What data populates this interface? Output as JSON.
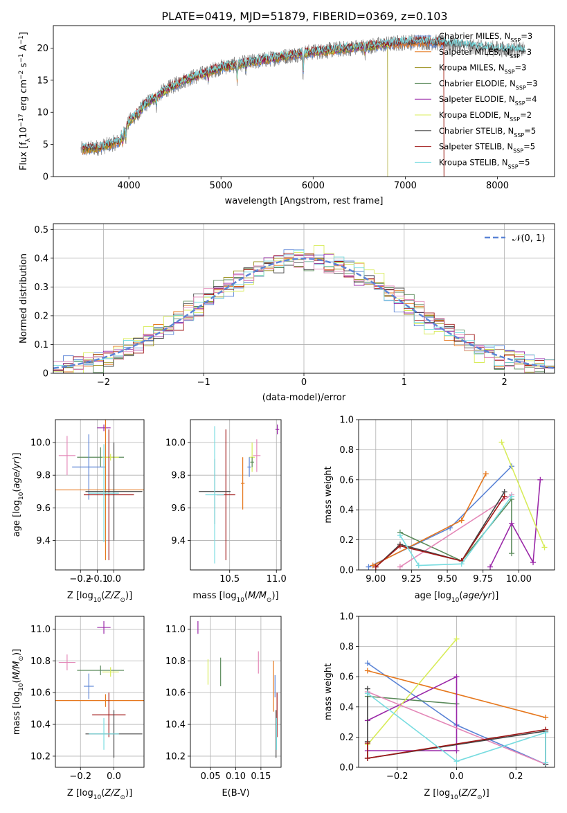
{
  "figure_title": "PLATE=0419, MJD=51879, FIBERID=0369, z=0.103",
  "colors": {
    "Chabrier MILES": "#5b84d6",
    "Salpeter MILES": "#e6781e",
    "Kroupa MILES": "#9a8f1a",
    "Chabrier ELODIE": "#5a8a5a",
    "Salpeter ELODIE": "#9a28a8",
    "Kroupa ELODIE": "#d8ec5a",
    "Chabrier STELIB": "#444444",
    "Salpeter STELIB": "#a01818",
    "Kroupa STELIB": "#78dce0",
    "pink": "#e488b8",
    "data": "#808080"
  },
  "chart_data": [
    {
      "id": "spectrum",
      "type": "line",
      "title": "PLATE=0419, MJD=51879, FIBERID=0369, z=0.103",
      "xlabel": "wavelength [Angstrom, rest frame]",
      "ylabel": "Flux [f_λ 10^-17 erg cm^-2 s^-1 A^-1]",
      "xlim": [
        3180,
        8620
      ],
      "ylim": [
        0,
        23.5
      ],
      "xticks": [
        4000,
        5000,
        6000,
        7000,
        8000
      ],
      "yticks": [
        0,
        5,
        10,
        15,
        20
      ],
      "grid": false,
      "legend_position": "right",
      "legend": [
        {
          "label": "Chabrier MILES, N",
          "sub": "SSP",
          "suffix": "=3",
          "color": "Chabrier MILES"
        },
        {
          "label": "Salpeter MILES, N",
          "sub": "SSP",
          "suffix": "=3",
          "color": "Salpeter MILES"
        },
        {
          "label": "Kroupa MILES, N",
          "sub": "SSP",
          "suffix": "=3",
          "color": "Kroupa MILES"
        },
        {
          "label": "Chabrier ELODIE, N",
          "sub": "SSP",
          "suffix": "=3",
          "color": "Chabrier ELODIE"
        },
        {
          "label": "Salpeter ELODIE, N",
          "sub": "SSP",
          "suffix": "=4",
          "color": "Salpeter ELODIE"
        },
        {
          "label": "Kroupa ELODIE, N",
          "sub": "SSP",
          "suffix": "=2",
          "color": "Kroupa ELODIE"
        },
        {
          "label": "Chabrier STELIB, N",
          "sub": "SSP",
          "suffix": "=5",
          "color": "Chabrier STELIB"
        },
        {
          "label": "Salpeter STELIB, N",
          "sub": "SSP",
          "suffix": "=5",
          "color": "Salpeter STELIB"
        },
        {
          "label": "Kroupa STELIB, N",
          "sub": "SSP",
          "suffix": "=5",
          "color": "Kroupa STELIB"
        }
      ],
      "continuum_x": [
        3480,
        3700,
        3900,
        4000,
        4200,
        4400,
        4600,
        4800,
        5000,
        5200,
        5400,
        5600,
        5800,
        6000,
        6200,
        6400,
        6600,
        6800,
        7000,
        7200,
        7400,
        7600,
        7800,
        8000,
        8200
      ],
      "continuum_y": [
        4.2,
        4.6,
        5.5,
        8.5,
        11.5,
        13.5,
        15.0,
        16.0,
        17.0,
        17.5,
        18.0,
        18.5,
        19.0,
        19.4,
        19.7,
        20.0,
        20.3,
        20.6,
        20.9,
        21.0,
        20.8,
        20.4,
        20.1,
        19.9,
        19.7
      ],
      "model_ranges": [
        {
          "color": "Chabrier MILES",
          "start": 3500,
          "end": 7420
        },
        {
          "color": "Salpeter MILES",
          "start": 3500,
          "end": 7420
        },
        {
          "color": "Kroupa MILES",
          "start": 3500,
          "end": 6810
        },
        {
          "color": "Chabrier ELODIE",
          "start": 3900,
          "end": 6810
        },
        {
          "color": "Salpeter ELODIE",
          "start": 3900,
          "end": 6810
        },
        {
          "color": "Kroupa ELODIE",
          "start": 3900,
          "end": 6810
        },
        {
          "color": "Chabrier STELIB",
          "start": 3500,
          "end": 8300
        },
        {
          "color": "Salpeter STELIB",
          "start": 3500,
          "end": 7420
        },
        {
          "color": "Kroupa STELIB",
          "start": 3500,
          "end": 8300
        }
      ],
      "dips": [
        {
          "x": 3934,
          "depth": 1.5
        },
        {
          "x": 3968,
          "depth": 1.5
        },
        {
          "x": 4102,
          "depth": 1.2
        },
        {
          "x": 4300,
          "depth": 1.4
        },
        {
          "x": 4861,
          "depth": 1.3
        },
        {
          "x": 5175,
          "depth": 2.6
        },
        {
          "x": 5270,
          "depth": 1.0
        },
        {
          "x": 5892,
          "depth": 3.5
        },
        {
          "x": 6563,
          "depth": 1.2
        }
      ]
    },
    {
      "id": "residuals",
      "type": "histogram",
      "xlabel": "(data-model)/error",
      "ylabel": "Normed distribution",
      "xlim": [
        -2.5,
        2.5
      ],
      "ylim": [
        0,
        0.52
      ],
      "xticks": [
        -2,
        -1,
        0,
        1,
        2
      ],
      "yticks": [
        0.0,
        0.1,
        0.2,
        0.3,
        0.4,
        0.5
      ],
      "grid": true,
      "legend_position": "upper right",
      "legend_label": "𝒩(0, 1)",
      "bin_width": 0.1,
      "gaussian": {
        "mean": 0,
        "sigma": 1,
        "color": "#5b84d6"
      },
      "series_colors": [
        "Chabrier MILES",
        "Salpeter MILES",
        "Kroupa MILES",
        "Chabrier ELODIE",
        "Salpeter ELODIE",
        "Kroupa ELODIE",
        "Chabrier STELIB",
        "Salpeter STELIB",
        "Kroupa STELIB",
        "pink"
      ],
      "series_offsets": [
        0.012,
        -0.015,
        0.008,
        0.02,
        -0.01,
        0.03,
        -0.02,
        0.005,
        -0.006,
        0.015
      ]
    },
    {
      "id": "age_vs_Z",
      "type": "errorbar",
      "xlabel": "Z [log10(Z/Z⊙)]",
      "ylabel": "age [log10(age/yr)]",
      "xlim": [
        -0.35,
        0.18
      ],
      "ylim": [
        9.22,
        10.14
      ],
      "xticks": [
        -0.2,
        -0.1,
        0.0
      ],
      "xticklabels": [
        "−0.2",
        "−0.1",
        "0.0"
      ],
      "yticks": [
        9.4,
        9.6,
        9.8,
        10.0
      ],
      "yticklabels": [
        "9.4",
        "9.6",
        "9.8",
        "10.0"
      ],
      "grid": true,
      "points": [
        {
          "x": -0.06,
          "y": 10.09,
          "xerr": 0.04,
          "yerr": 0.02,
          "color": "Salpeter ELODIE"
        },
        {
          "x": -0.28,
          "y": 9.92,
          "xerr": 0.05,
          "yerr": 0.12,
          "color": "pink"
        },
        {
          "x": -0.08,
          "y": 9.91,
          "xerr": 0.14,
          "yerr": 0.06,
          "color": "Chabrier ELODIE"
        },
        {
          "x": -0.02,
          "y": 9.91,
          "xerr": 0.05,
          "yerr": 0.02,
          "color": "Kroupa ELODIE"
        },
        {
          "x": -0.15,
          "y": 9.85,
          "xerr": 0.1,
          "yerr": 0.2,
          "color": "Chabrier MILES"
        },
        {
          "x": -0.05,
          "y": 9.71,
          "xerr": 0.3,
          "yerr": 0.43,
          "color": "Salpeter MILES"
        },
        {
          "x": 0.0,
          "y": 9.7,
          "xerr": 0.17,
          "yerr": 0.3,
          "color": "Chabrier STELIB"
        },
        {
          "x": -0.03,
          "y": 9.68,
          "xerr": 0.15,
          "yerr": 0.4,
          "color": "Salpeter STELIB"
        },
        {
          "x": -0.06,
          "y": 9.69,
          "xerr": 0.09,
          "yerr": 0.3,
          "color": "Kroupa STELIB"
        }
      ]
    },
    {
      "id": "age_vs_mass",
      "type": "errorbar",
      "xlabel": "mass [log10(M/M⊙)]",
      "ylabel": "",
      "xlim": [
        10.08,
        11.05
      ],
      "ylim": [
        9.22,
        10.14
      ],
      "xticks": [
        10.5,
        11.0
      ],
      "xticklabels": [
        "10.5",
        "11.0"
      ],
      "yticks": [
        9.4,
        9.6,
        9.8,
        10.0
      ],
      "yticklabels": [
        "9.4",
        "9.6",
        "9.8",
        "10.0"
      ],
      "grid": true,
      "points": [
        {
          "x": 11.01,
          "y": 10.08,
          "xerr": 0.02,
          "yerr": 0.03,
          "color": "Salpeter ELODIE"
        },
        {
          "x": 10.79,
          "y": 9.92,
          "xerr": 0.04,
          "yerr": 0.1,
          "color": "pink"
        },
        {
          "x": 10.74,
          "y": 9.91,
          "xerr": 0.03,
          "yerr": 0.09,
          "color": "Kroupa ELODIE"
        },
        {
          "x": 10.74,
          "y": 9.88,
          "xerr": 0.02,
          "yerr": 0.03,
          "color": "Chabrier ELODIE"
        },
        {
          "x": 10.71,
          "y": 9.85,
          "xerr": 0.02,
          "yerr": 0.06,
          "color": "Chabrier MILES"
        },
        {
          "x": 10.64,
          "y": 9.75,
          "xerr": 0.02,
          "yerr": 0.16,
          "color": "Salpeter MILES"
        },
        {
          "x": 10.46,
          "y": 9.68,
          "xerr": 0.1,
          "yerr": 0.4,
          "color": "Salpeter STELIB"
        },
        {
          "x": 10.34,
          "y": 9.7,
          "xerr": 0.17,
          "yerr": 0.2,
          "color": "Chabrier STELIB"
        },
        {
          "x": 10.34,
          "y": 9.68,
          "xerr": 0.1,
          "yerr": 0.42,
          "color": "Kroupa STELIB"
        }
      ]
    },
    {
      "id": "weight_vs_age",
      "type": "line",
      "xlabel": "age [log10(age/yr)]",
      "ylabel": "mass weight",
      "xlim": [
        8.88,
        10.25
      ],
      "ylim": [
        0,
        1
      ],
      "xticks": [
        9.0,
        9.25,
        9.5,
        9.75,
        10.0
      ],
      "xticklabels": [
        "9.00",
        "9.25",
        "9.50",
        "9.75",
        "10.00"
      ],
      "yticks": [
        0,
        0.2,
        0.4,
        0.6,
        0.8,
        1.0
      ],
      "yticklabels": [
        "0.0",
        "0.2",
        "0.4",
        "0.6",
        "0.8",
        "1.0"
      ],
      "grid": true,
      "series": [
        {
          "color": "Chabrier MILES",
          "x": [
            8.95,
            9.52,
            9.95
          ],
          "y": [
            0.02,
            0.28,
            0.69
          ]
        },
        {
          "color": "Salpeter MILES",
          "x": [
            8.98,
            9.6,
            9.77
          ],
          "y": [
            0.03,
            0.33,
            0.64
          ]
        },
        {
          "color": "Chabrier ELODIE",
          "x": [
            9.17,
            9.6,
            9.95,
            9.95
          ],
          "y": [
            0.25,
            0.06,
            0.47,
            0.11
          ]
        },
        {
          "color": "Salpeter ELODIE",
          "x": [
            9.8,
            9.95,
            10.1,
            10.15
          ],
          "y": [
            0.02,
            0.31,
            0.05,
            0.6
          ]
        },
        {
          "color": "Kroupa ELODIE",
          "x": [
            9.88,
            10.18
          ],
          "y": [
            0.85,
            0.15
          ]
        },
        {
          "color": "pink",
          "x": [
            9.17,
            9.95
          ],
          "y": [
            0.02,
            0.5
          ]
        },
        {
          "color": "Chabrier STELIB",
          "x": [
            9.0,
            9.17,
            9.6,
            9.9
          ],
          "y": [
            0.02,
            0.17,
            0.06,
            0.52
          ]
        },
        {
          "color": "Salpeter STELIB",
          "x": [
            9.0,
            9.17,
            9.6,
            9.9
          ],
          "y": [
            0.02,
            0.16,
            0.06,
            0.49
          ]
        },
        {
          "color": "Kroupa STELIB",
          "x": [
            9.17,
            9.3,
            9.6,
            9.95
          ],
          "y": [
            0.23,
            0.03,
            0.04,
            0.49
          ]
        }
      ]
    },
    {
      "id": "mass_vs_Z",
      "type": "errorbar",
      "xlabel": "Z [log10(Z/Z⊙)]",
      "ylabel": "mass [log10(M/M⊙)]",
      "xlim": [
        -0.35,
        0.18
      ],
      "ylim": [
        10.13,
        11.08
      ],
      "xticks": [
        -0.2,
        0.0
      ],
      "xticklabels": [
        "−0.2",
        "0.0"
      ],
      "yticks": [
        10.2,
        10.4,
        10.6,
        10.8,
        11.0
      ],
      "yticklabels": [
        "10.2",
        "10.4",
        "10.6",
        "10.8",
        "11.0"
      ],
      "grid": true,
      "points": [
        {
          "x": -0.06,
          "y": 11.01,
          "xerr": 0.04,
          "yerr": 0.04,
          "color": "Salpeter ELODIE"
        },
        {
          "x": -0.28,
          "y": 10.79,
          "xerr": 0.05,
          "yerr": 0.05,
          "color": "pink"
        },
        {
          "x": -0.08,
          "y": 10.74,
          "xerr": 0.14,
          "yerr": 0.03,
          "color": "Chabrier ELODIE"
        },
        {
          "x": -0.02,
          "y": 10.73,
          "xerr": 0.05,
          "yerr": 0.03,
          "color": "Kroupa ELODIE"
        },
        {
          "x": -0.15,
          "y": 10.64,
          "xerr": 0.03,
          "yerr": 0.08,
          "color": "Chabrier MILES"
        },
        {
          "x": -0.05,
          "y": 10.55,
          "xerr": 0.3,
          "yerr": 0.04,
          "color": "Salpeter MILES"
        },
        {
          "x": -0.03,
          "y": 10.46,
          "xerr": 0.1,
          "yerr": 0.14,
          "color": "Salpeter STELIB"
        },
        {
          "x": 0.0,
          "y": 10.34,
          "xerr": 0.17,
          "yerr": 0.15,
          "color": "Chabrier STELIB"
        },
        {
          "x": -0.06,
          "y": 10.34,
          "xerr": 0.09,
          "yerr": 0.1,
          "color": "Kroupa STELIB"
        }
      ]
    },
    {
      "id": "mass_vs_EBV",
      "type": "errorbar",
      "xlabel": "E(B-V)",
      "ylabel": "",
      "xlim": [
        0.01,
        0.19
      ],
      "ylim": [
        10.13,
        11.08
      ],
      "xticks": [
        0.05,
        0.1,
        0.15
      ],
      "xticklabels": [
        "0.05",
        "0.10",
        "0.15"
      ],
      "yticks": [
        10.2,
        10.4,
        10.6,
        10.8,
        11.0
      ],
      "yticklabels": [
        "10.2",
        "10.4",
        "10.6",
        "10.8",
        "11.0"
      ],
      "grid": true,
      "points": [
        {
          "x": 0.025,
          "y": 11.01,
          "xerr": 0.0,
          "yerr": 0.04,
          "color": "Salpeter ELODIE"
        },
        {
          "x": 0.045,
          "y": 10.73,
          "xerr": 0.0,
          "yerr": 0.08,
          "color": "Kroupa ELODIE"
        },
        {
          "x": 0.07,
          "y": 10.73,
          "xerr": 0.0,
          "yerr": 0.09,
          "color": "Chabrier ELODIE"
        },
        {
          "x": 0.145,
          "y": 10.79,
          "xerr": 0.0,
          "yerr": 0.07,
          "color": "pink"
        },
        {
          "x": 0.175,
          "y": 10.64,
          "xerr": 0.0,
          "yerr": 0.16,
          "color": "Salpeter MILES"
        },
        {
          "x": 0.178,
          "y": 10.64,
          "xerr": 0.0,
          "yerr": 0.07,
          "color": "Chabrier MILES"
        },
        {
          "x": 0.182,
          "y": 10.46,
          "xerr": 0.0,
          "yerr": 0.14,
          "color": "Salpeter STELIB"
        },
        {
          "x": 0.18,
          "y": 10.34,
          "xerr": 0.0,
          "yerr": 0.15,
          "color": "Chabrier STELIB"
        },
        {
          "x": 0.181,
          "y": 10.34,
          "xerr": 0.0,
          "yerr": 0.1,
          "color": "Kroupa STELIB"
        }
      ]
    },
    {
      "id": "weight_vs_Z",
      "type": "line",
      "xlabel": "Z [log10(Z/Z⊙)]",
      "ylabel": "mass weight",
      "xlim": [
        -0.33,
        0.33
      ],
      "ylim": [
        0,
        1
      ],
      "xticks": [
        -0.2,
        0.0,
        0.2
      ],
      "xticklabels": [
        "−0.2",
        "0.0",
        "0.2"
      ],
      "yticks": [
        0,
        0.2,
        0.4,
        0.6,
        0.8,
        1.0
      ],
      "yticklabels": [
        "0.0",
        "0.2",
        "0.4",
        "0.6",
        "0.8",
        "1.0"
      ],
      "grid": true,
      "series": [
        {
          "color": "Chabrier MILES",
          "x": [
            -0.3,
            0.0,
            0.3
          ],
          "y": [
            0.69,
            0.28,
            0.02
          ]
        },
        {
          "color": "Salpeter MILES",
          "x": [
            -0.3,
            0.3
          ],
          "y": [
            0.64,
            0.33
          ]
        },
        {
          "color": "Chabrier ELODIE",
          "x": [
            -0.3,
            0.0
          ],
          "y": [
            0.47,
            0.42
          ]
        },
        {
          "color": "Salpeter ELODIE",
          "x": [
            -0.3,
            0.0,
            0.0,
            -0.3
          ],
          "y": [
            0.31,
            0.6,
            0.11,
            0.11
          ]
        },
        {
          "color": "Kroupa ELODIE",
          "x": [
            -0.3,
            0.0
          ],
          "y": [
            0.15,
            0.85
          ]
        },
        {
          "color": "pink",
          "x": [
            -0.3,
            0.3
          ],
          "y": [
            0.5,
            0.02
          ]
        },
        {
          "color": "Chabrier STELIB",
          "x": [
            -0.3,
            -0.3,
            -0.3,
            0.3,
            0.3
          ],
          "y": [
            0.52,
            0.17,
            0.06,
            0.24,
            0.02
          ]
        },
        {
          "color": "Salpeter STELIB",
          "x": [
            -0.3,
            -0.3,
            0.3
          ],
          "y": [
            0.16,
            0.06,
            0.25
          ]
        },
        {
          "color": "Kroupa STELIB",
          "x": [
            -0.3,
            0.0,
            0.3,
            0.3
          ],
          "y": [
            0.49,
            0.04,
            0.23,
            0.03
          ]
        }
      ]
    }
  ]
}
